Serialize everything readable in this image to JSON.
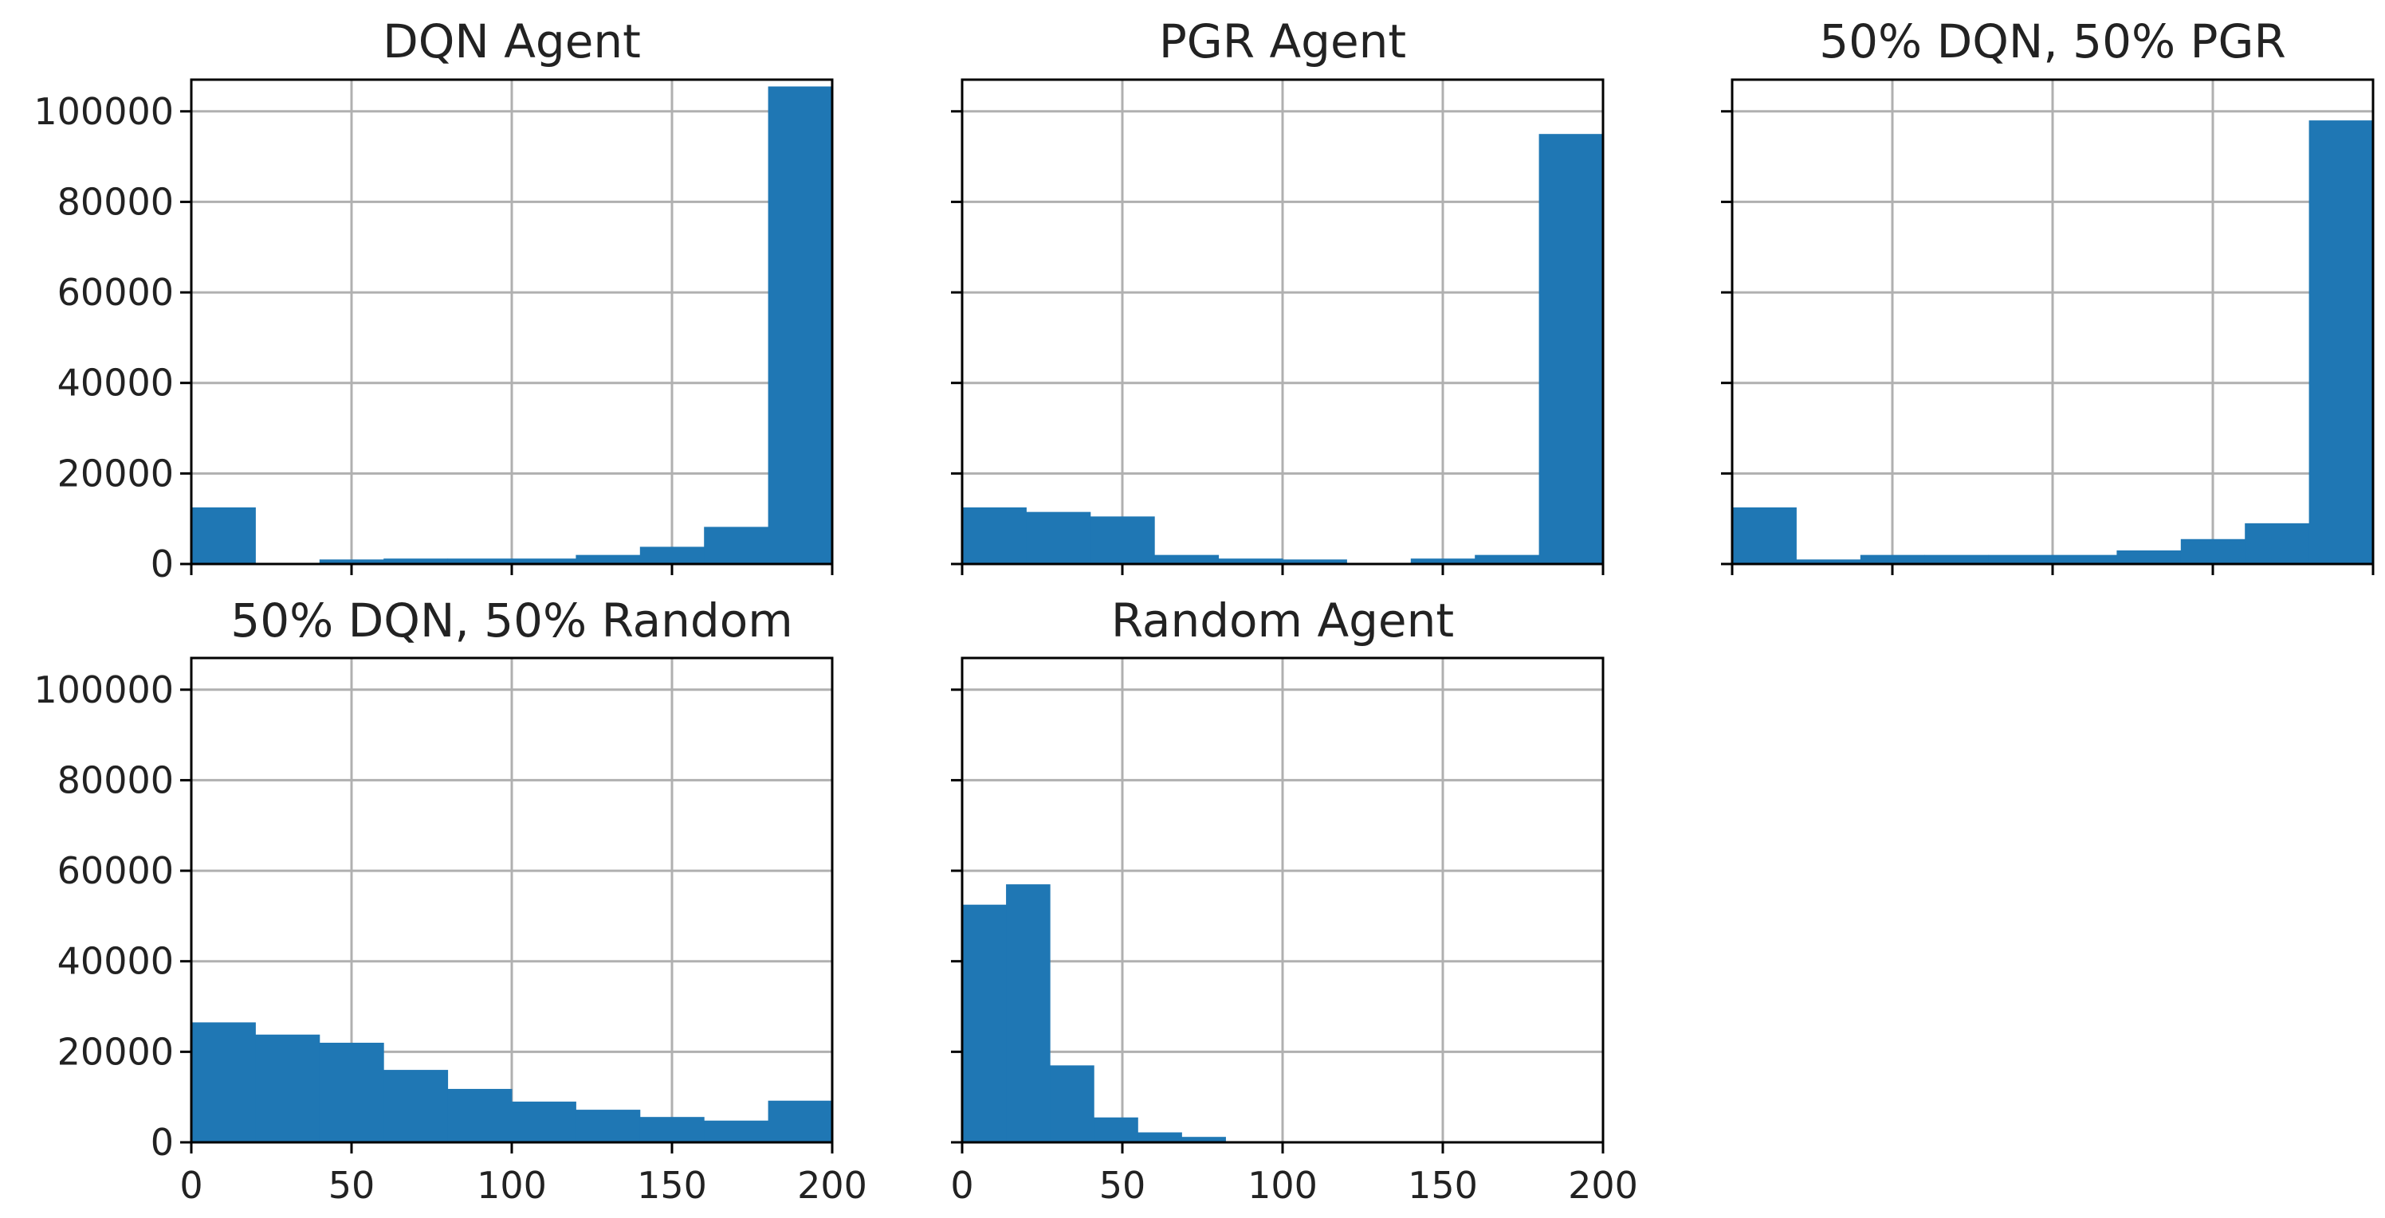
{
  "figure": {
    "bar_color": "#1f77b4",
    "grid_color": "#b0b0b0",
    "axis_color": "#000000",
    "background": "#ffffff"
  },
  "chart_data": [
    {
      "type": "bar",
      "title": "DQN Agent",
      "xlabel": "",
      "ylabel": "",
      "xlim": [
        0,
        200
      ],
      "ylim": [
        0,
        107000
      ],
      "grid": true,
      "bin_edges": [
        0,
        20,
        40,
        60,
        80,
        100,
        120,
        140,
        160,
        180,
        200
      ],
      "values": [
        12500,
        0,
        1000,
        1200,
        1200,
        1200,
        2000,
        3800,
        8200,
        105500
      ],
      "yticks": [
        "0",
        "20000",
        "40000",
        "60000",
        "80000",
        "100000"
      ],
      "xticks": []
    },
    {
      "type": "bar",
      "title": "PGR Agent",
      "xlabel": "",
      "ylabel": "",
      "xlim": [
        0,
        200
      ],
      "ylim": [
        0,
        107000
      ],
      "grid": true,
      "bin_edges": [
        0,
        20,
        40,
        60,
        80,
        100,
        120,
        140,
        160,
        180,
        200
      ],
      "values": [
        12500,
        11500,
        10500,
        2000,
        1200,
        1000,
        0,
        1200,
        2000,
        95000
      ],
      "yticks": [],
      "xticks": []
    },
    {
      "type": "bar",
      "title": "50% DQN, 50% PGR",
      "xlabel": "",
      "ylabel": "",
      "xlim": [
        0,
        200
      ],
      "ylim": [
        0,
        107000
      ],
      "grid": true,
      "bin_edges": [
        0,
        20,
        40,
        60,
        80,
        100,
        120,
        140,
        160,
        180,
        200
      ],
      "values": [
        12500,
        1000,
        2000,
        2000,
        2000,
        2000,
        3000,
        5500,
        9000,
        98000
      ],
      "yticks": [],
      "xticks": []
    },
    {
      "type": "bar",
      "title": "50% DQN, 50% Random",
      "xlabel": "",
      "ylabel": "",
      "xlim": [
        0,
        200
      ],
      "ylim": [
        0,
        107000
      ],
      "grid": true,
      "bin_edges": [
        0,
        20,
        40,
        60,
        80,
        100,
        120,
        140,
        160,
        180,
        200
      ],
      "values": [
        26500,
        23800,
        22000,
        16000,
        11800,
        9000,
        7200,
        5600,
        4800,
        9200
      ],
      "yticks": [
        "0",
        "20000",
        "40000",
        "60000",
        "80000",
        "100000"
      ],
      "xticks": [
        "0",
        "50",
        "100",
        "150",
        "200"
      ]
    },
    {
      "type": "bar",
      "title": "Random Agent",
      "xlabel": "",
      "ylabel": "",
      "xlim": [
        0,
        200
      ],
      "ylim": [
        0,
        107000
      ],
      "grid": true,
      "bin_edges": [
        0,
        13.7,
        27.4,
        41.1,
        54.8,
        68.5,
        82.2,
        95.9,
        109.6,
        123.3,
        137
      ],
      "values": [
        52500,
        57000,
        17000,
        5500,
        2200,
        1200,
        200,
        0,
        0,
        0
      ],
      "yticks": [],
      "xticks": [
        "0",
        "50",
        "100",
        "150",
        "200"
      ]
    }
  ]
}
